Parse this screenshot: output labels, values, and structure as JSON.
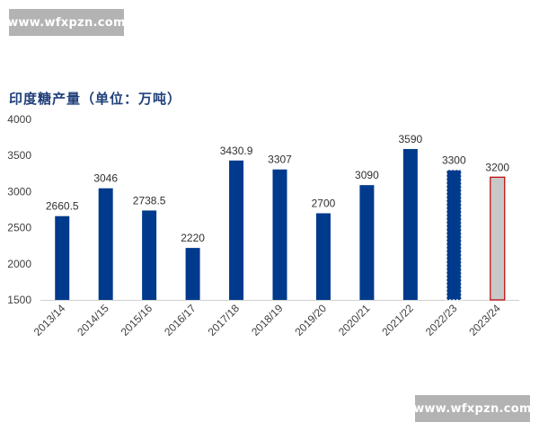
{
  "watermark": {
    "top_text": "www.wfxpzn.com",
    "bottom_text": "www.wfxpzn.com"
  },
  "chart_data": {
    "type": "bar",
    "title": "印度糖产量（单位：万吨）",
    "xlabel": "",
    "ylabel": "",
    "ylim": [
      1500,
      4000
    ],
    "yticks": [
      1500,
      2000,
      2500,
      3000,
      3500,
      4000
    ],
    "categories": [
      "2013/14",
      "2014/15",
      "2015/16",
      "2016/17",
      "2017/18",
      "2018/19",
      "2019/20",
      "2020/21",
      "2021/22",
      "2022/23",
      "2023/24"
    ],
    "series": [
      {
        "values": [
          2660.5,
          3046,
          2738.5,
          2220,
          3430.9,
          3307,
          2700,
          3090,
          3590,
          3300,
          3200
        ],
        "labels": [
          "2660.5",
          "3046",
          "2738.5",
          "2220",
          "3430.9",
          "3307",
          "2700",
          "3090",
          "3590",
          "3300",
          "3200"
        ]
      }
    ],
    "bar_styles": [
      "solid",
      "solid",
      "solid",
      "solid",
      "solid",
      "solid",
      "solid",
      "solid",
      "solid",
      "dashed",
      "forecast"
    ],
    "colors": {
      "bar": "#003a8c",
      "forecast_fill": "#c8c8c8",
      "forecast_border": "#c00000",
      "axis": "#d0d0d0"
    },
    "grid": false,
    "legend": "none"
  }
}
